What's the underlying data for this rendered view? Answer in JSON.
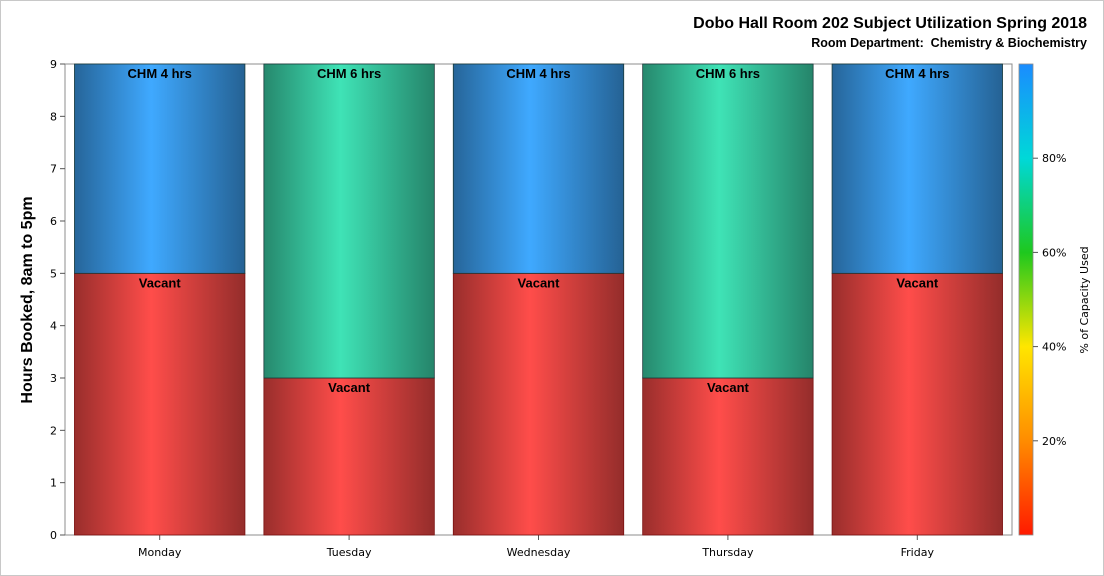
{
  "chart_data": {
    "type": "bar",
    "stacked": true,
    "title": "Dobo Hall Room 202 Subject Utilization Spring 2018",
    "subtitle": "Room Department:  Chemistry & Biochemistry",
    "ylabel": "Hours Booked, 8am to 5pm",
    "xlabel": "",
    "ylim": [
      0,
      9
    ],
    "yticks": [
      0,
      1,
      2,
      3,
      4,
      5,
      6,
      7,
      8,
      9
    ],
    "categories": [
      "Monday",
      "Tuesday",
      "Wednesday",
      "Thursday",
      "Friday"
    ],
    "series": [
      {
        "segment": "lower",
        "values": [
          5,
          3,
          5,
          3,
          5
        ],
        "labels": [
          "Vacant",
          "Vacant",
          "Vacant",
          "Vacant",
          "Vacant"
        ],
        "color": "#ff4d4a"
      },
      {
        "segment": "upper",
        "values": [
          4,
          6,
          4,
          6,
          4
        ],
        "labels": [
          "CHM 4 hrs",
          "CHM 6 hrs",
          "CHM 4 hrs",
          "CHM 6 hrs",
          "CHM 4 hrs"
        ],
        "colors": [
          "#3fa9ff",
          "#3fe3b6",
          "#3fa9ff",
          "#3fe3b6",
          "#3fa9ff"
        ]
      }
    ],
    "colorbar": {
      "label": "% of Capacity Used",
      "ticks": [
        "20%",
        "40%",
        "60%",
        "80%"
      ],
      "tick_values": [
        20,
        40,
        60,
        80
      ],
      "range": [
        0,
        100
      ],
      "colors": [
        "#ff1a00",
        "#ff8c00",
        "#ffe600",
        "#1ec81e",
        "#00d8d8",
        "#1a8cff"
      ]
    },
    "grid": false,
    "legend": "colorbar-right"
  }
}
